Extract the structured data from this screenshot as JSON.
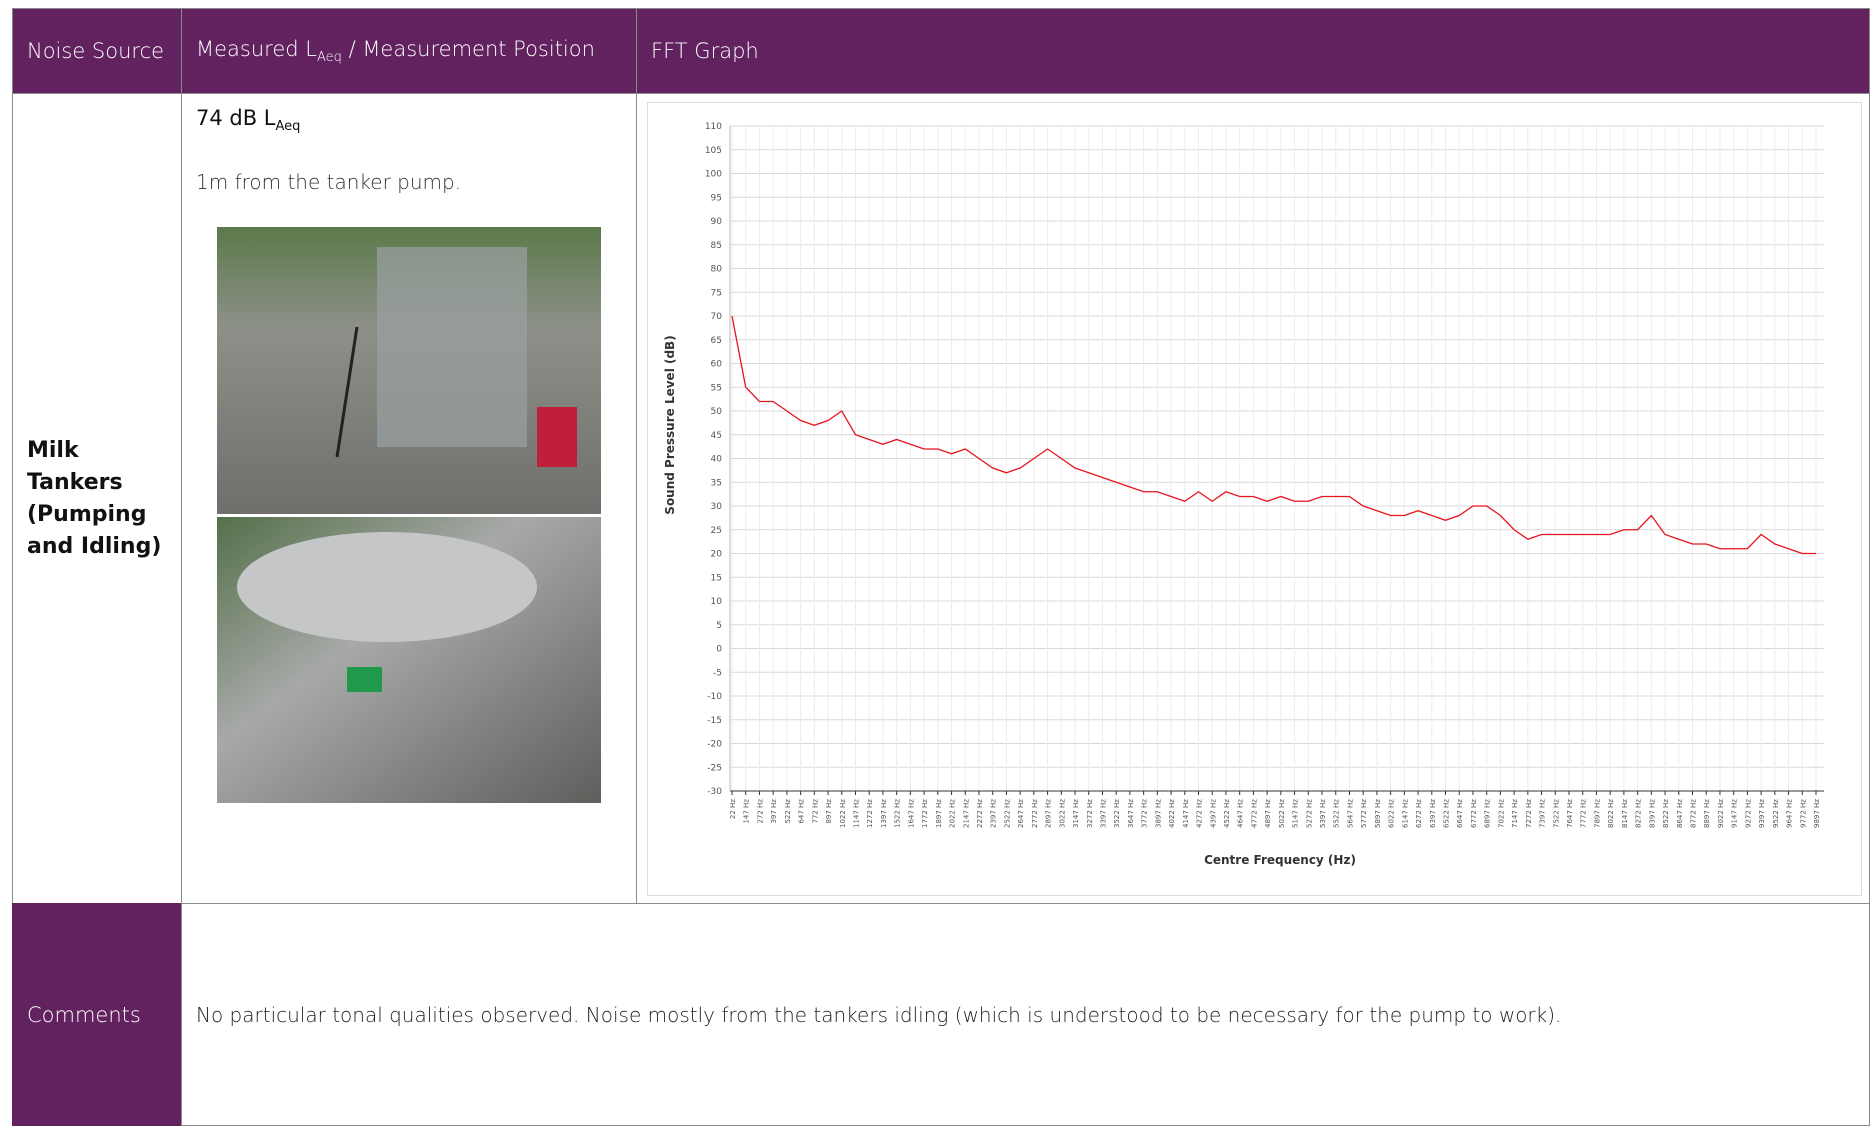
{
  "header": {
    "col1": "Noise Source",
    "col2": {
      "main": "Measured L",
      "sub": "Aeq",
      "rest": " / Measurement Position"
    },
    "col3": "FFT Graph"
  },
  "row": {
    "source": "Milk Tankers (Pumping and Idling)",
    "level": {
      "main": "74 dB L",
      "sub": "Aeq"
    },
    "position": "1m from the tanker pump."
  },
  "comments": {
    "label": "Comments",
    "text": "No particular tonal qualities observed.  Noise mostly from the tankers idling (which is understood to be necessary for the pump to work)."
  },
  "chart_data": {
    "type": "line",
    "x_label": "Centre Frequency (Hz)",
    "y_label": "Sound Pressure Level (dB)",
    "categories": [
      "22 Hz",
      "147 Hz",
      "272 Hz",
      "397 Hz",
      "522 Hz",
      "647 Hz",
      "772 Hz",
      "897 Hz",
      "1022 Hz",
      "1147 Hz",
      "1272 Hz",
      "1397 Hz",
      "1522 Hz",
      "1647 Hz",
      "1772 Hz",
      "1897 Hz",
      "2022 Hz",
      "2147 Hz",
      "2272 Hz",
      "2397 Hz",
      "2522 Hz",
      "2647 Hz",
      "2772 Hz",
      "2897 Hz",
      "3022 Hz",
      "3147 Hz",
      "3272 Hz",
      "3397 Hz",
      "3522 Hz",
      "3647 Hz",
      "3772 Hz",
      "3897 Hz",
      "4022 Hz",
      "4147 Hz",
      "4272 Hz",
      "4397 Hz",
      "4522 Hz",
      "4647 Hz",
      "4772 Hz",
      "4897 Hz",
      "5022 Hz",
      "5147 Hz",
      "5272 Hz",
      "5397 Hz",
      "5522 Hz",
      "5647 Hz",
      "5772 Hz",
      "5897 Hz",
      "6022 Hz",
      "6147 Hz",
      "6272 Hz",
      "6397 Hz",
      "6522 Hz",
      "6647 Hz",
      "6772 Hz",
      "6897 Hz",
      "7022 Hz",
      "7147 Hz",
      "7272 Hz",
      "7397 Hz",
      "7522 Hz",
      "7647 Hz",
      "7772 Hz",
      "7897 Hz",
      "8022 Hz",
      "8147 Hz",
      "8272 Hz",
      "8397 Hz",
      "8522 Hz",
      "8647 Hz",
      "8772 Hz",
      "8897 Hz",
      "9022 Hz",
      "9147 Hz",
      "9272 Hz",
      "9397 Hz",
      "9522 Hz",
      "9647 Hz",
      "9772 Hz",
      "9897 Hz"
    ],
    "values": [
      70,
      55,
      52,
      52,
      50,
      48,
      47,
      48,
      50,
      45,
      44,
      43,
      44,
      43,
      42,
      42,
      41,
      42,
      40,
      38,
      37,
      38,
      40,
      42,
      40,
      38,
      37,
      36,
      35,
      34,
      33,
      33,
      32,
      31,
      33,
      31,
      33,
      32,
      32,
      31,
      32,
      31,
      31,
      32,
      32,
      32,
      30,
      29,
      28,
      28,
      29,
      28,
      27,
      28,
      30,
      30,
      28,
      25,
      23,
      24,
      24,
      24,
      24,
      24,
      24,
      25,
      25,
      28,
      24,
      23,
      22,
      22,
      21,
      21,
      21,
      24,
      22,
      21,
      20,
      20
    ],
    "color": "#e8141b",
    "ylim": [
      -30,
      110
    ],
    "yticks": [
      -30,
      -25,
      -20,
      -15,
      -10,
      -5,
      0,
      5,
      10,
      15,
      20,
      25,
      30,
      35,
      40,
      45,
      50,
      55,
      60,
      65,
      70,
      75,
      80,
      85,
      90,
      95,
      100,
      105,
      110
    ],
    "grid": true
  }
}
